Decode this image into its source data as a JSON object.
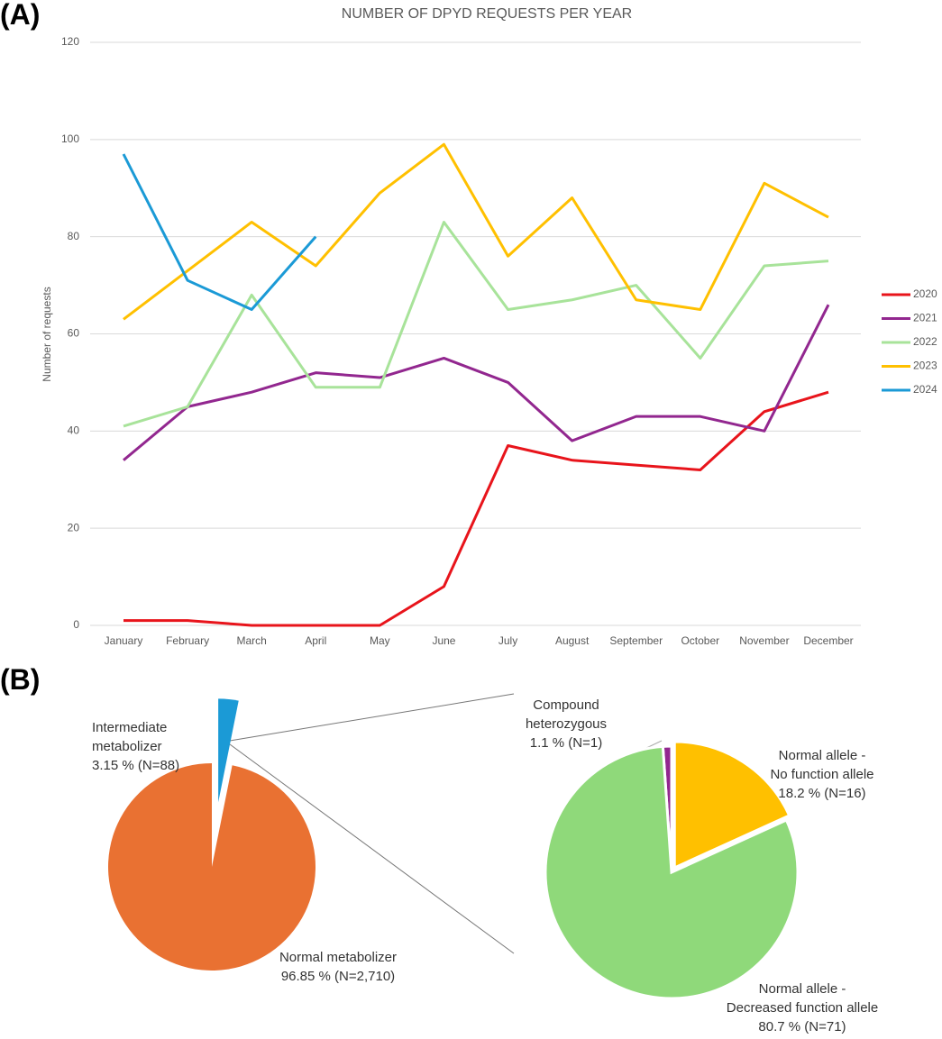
{
  "panels": [
    "(A)",
    "(B)"
  ],
  "chart_data": [
    {
      "type": "line",
      "title": "NUMBER OF DPYD REQUESTS PER YEAR",
      "y_label": "Number of requests",
      "categories": [
        "January",
        "February",
        "March",
        "April",
        "May",
        "June",
        "July",
        "August",
        "September",
        "October",
        "November",
        "December"
      ],
      "series": [
        {
          "name": "2020",
          "color": "#e8141b",
          "values": [
            1,
            1,
            0,
            0,
            0,
            8,
            37,
            34,
            33,
            32,
            44,
            48
          ]
        },
        {
          "name": "2021",
          "color": "#92278f",
          "values": [
            34,
            45,
            48,
            52,
            51,
            55,
            50,
            38,
            43,
            43,
            40,
            66
          ]
        },
        {
          "name": "2022",
          "color": "#a8e39a",
          "values": [
            41,
            45,
            68,
            49,
            49,
            83,
            65,
            67,
            70,
            55,
            74,
            75
          ]
        },
        {
          "name": "2023",
          "color": "#ffc000",
          "values": [
            63,
            73,
            83,
            74,
            89,
            99,
            76,
            88,
            67,
            65,
            91,
            84
          ]
        },
        {
          "name": "2024",
          "color": "#1b9ad6",
          "values": [
            97,
            71,
            65,
            80,
            null,
            null,
            null,
            null,
            null,
            null,
            null,
            null
          ]
        }
      ],
      "ylim": [
        0,
        120
      ],
      "yticks": [
        0,
        20,
        40,
        60,
        80,
        100,
        120
      ],
      "grid": true,
      "legend": "right"
    },
    {
      "type": "pie",
      "categories": [
        "Intermediate\nmetabolizer",
        "Normal metabolizer"
      ],
      "values": [
        3.15,
        96.85
      ],
      "value_labels": [
        "3.15 % (N=88)",
        "96.85 % (N=2,710)"
      ],
      "colors": [
        "#1b9ad6",
        "#e97132"
      ]
    },
    {
      "type": "pie",
      "categories": [
        "Compound\nheterozygous",
        "Normal allele -\nNo function allele",
        "Normal allele -\nDecreased function allele"
      ],
      "values": [
        1.1,
        18.2,
        80.7
      ],
      "value_labels": [
        "1.1 % (N=1)",
        "18.2 % (N=16)",
        "80.7 % (N=71)"
      ],
      "colors": [
        "#92278f",
        "#ffc000",
        "#8fd97a"
      ]
    }
  ]
}
